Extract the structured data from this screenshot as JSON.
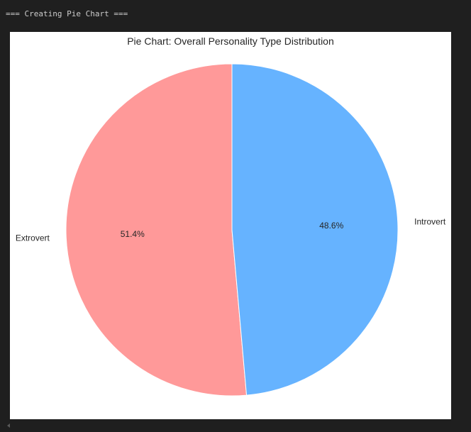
{
  "console": {
    "header": "=== Creating Pie Chart ==="
  },
  "chart_data": {
    "type": "pie",
    "title": "Pie Chart: Overall Personality Type Distribution",
    "categories": [
      "Extrovert",
      "Introvert"
    ],
    "values": [
      51.4,
      48.6
    ],
    "percent_labels": [
      "51.4%",
      "48.6%"
    ],
    "colors": [
      "#ff9999",
      "#66b3ff"
    ],
    "start_angle_deg": 90,
    "direction": "counterclockwise",
    "edge_color": "#ffffff",
    "legend": "none"
  },
  "icons": {
    "scroll_left": "scroll-left-arrow-icon"
  }
}
